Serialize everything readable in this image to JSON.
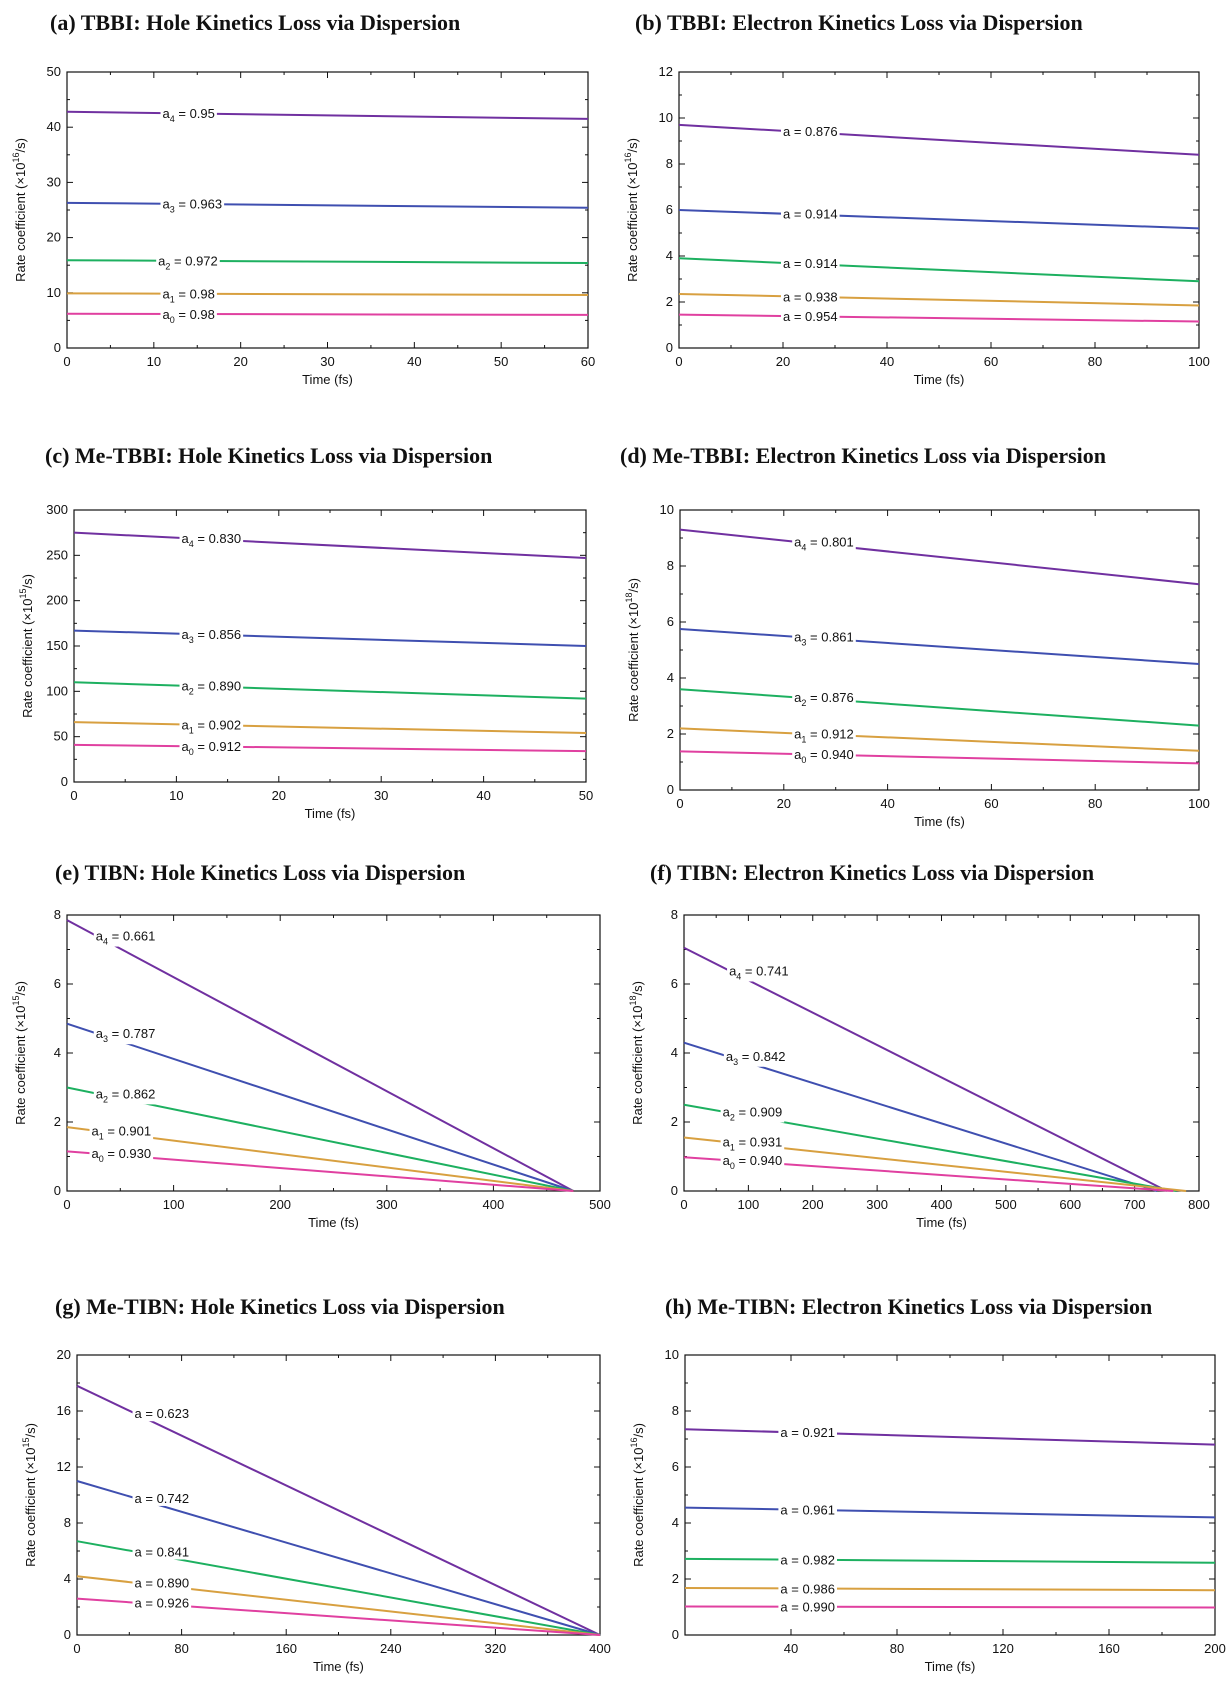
{
  "colors": {
    "purple": "#7030A0",
    "blue": "#3F4FB0",
    "green": "#1DB060",
    "orange": "#D8A040",
    "pink": "#E040A0"
  },
  "chart_data": [
    {
      "type": "line",
      "title": "(a) TBBI: Hole Kinetics Loss via Dispersion",
      "xlabel": "Time (fs)",
      "ylabel_base": "Rate coefficient (×10",
      "ylabel_exp": "16",
      "ylabel_tail": "/s)",
      "xlim": [
        0,
        60
      ],
      "ylim": [
        0,
        50
      ],
      "xticks": [
        0,
        10,
        20,
        30,
        40,
        50,
        60
      ],
      "yticks": [
        0,
        10,
        20,
        30,
        40,
        50
      ],
      "series": [
        {
          "label_base": "a",
          "label_sub": "4",
          "label_value": " = 0.95",
          "color": "#7030A0",
          "x": [
            0,
            60
          ],
          "y": [
            42.8,
            41.5
          ],
          "label_x": 11
        },
        {
          "label_base": "a",
          "label_sub": "3",
          "label_value": " = 0.963",
          "color": "#3F4FB0",
          "x": [
            0,
            60
          ],
          "y": [
            26.3,
            25.4
          ],
          "label_x": 11
        },
        {
          "label_base": "a",
          "label_sub": "2",
          "label_value": " = 0.972",
          "color": "#1DB060",
          "x": [
            0,
            60
          ],
          "y": [
            15.9,
            15.4
          ],
          "label_x": 10.5
        },
        {
          "label_base": "a",
          "label_sub": "1",
          "label_value": " = 0.98",
          "color": "#D8A040",
          "x": [
            0,
            60
          ],
          "y": [
            9.9,
            9.6
          ],
          "label_x": 11
        },
        {
          "label_base": "a",
          "label_sub": "0",
          "label_value": " = 0.98",
          "color": "#E040A0",
          "x": [
            0,
            60
          ],
          "y": [
            6.2,
            6.0
          ],
          "label_x": 11
        }
      ]
    },
    {
      "type": "line",
      "title": "(b) TBBI: Electron Kinetics Loss via Dispersion",
      "xlabel": "Time (fs)",
      "ylabel_base": "Rate coefficient (×10",
      "ylabel_exp": "16",
      "ylabel_tail": "/s)",
      "xlim": [
        0,
        100
      ],
      "ylim": [
        0,
        12
      ],
      "xticks": [
        0,
        20,
        40,
        60,
        80,
        100
      ],
      "yticks": [
        0,
        2,
        4,
        6,
        8,
        10,
        12
      ],
      "series": [
        {
          "label_base": "a",
          "label_sub": "",
          "label_value": " = 0.876",
          "color": "#7030A0",
          "x": [
            0,
            100
          ],
          "y": [
            9.7,
            8.4
          ],
          "label_x": 20
        },
        {
          "label_base": "a",
          "label_sub": "",
          "label_value": " = 0.914",
          "color": "#3F4FB0",
          "x": [
            0,
            100
          ],
          "y": [
            6.0,
            5.2
          ],
          "label_x": 20
        },
        {
          "label_base": "a",
          "label_sub": "",
          "label_value": " = 0.914",
          "color": "#1DB060",
          "x": [
            0,
            100
          ],
          "y": [
            3.9,
            2.9
          ],
          "label_x": 20
        },
        {
          "label_base": "a",
          "label_sub": "",
          "label_value": " = 0.938",
          "color": "#D8A040",
          "x": [
            0,
            100
          ],
          "y": [
            2.35,
            1.85
          ],
          "label_x": 20
        },
        {
          "label_base": "a",
          "label_sub": "",
          "label_value": " = 0.954",
          "color": "#E040A0",
          "x": [
            0,
            100
          ],
          "y": [
            1.45,
            1.15
          ],
          "label_x": 20
        }
      ]
    },
    {
      "type": "line",
      "title": "(c) Me-TBBI: Hole Kinetics Loss via Dispersion",
      "xlabel": "Time (fs)",
      "ylabel_base": "Rate coefficient (×10",
      "ylabel_exp": "15",
      "ylabel_tail": "/s)",
      "xlim": [
        0,
        50
      ],
      "ylim": [
        0,
        300
      ],
      "xticks": [
        0,
        10,
        20,
        30,
        40,
        50
      ],
      "yticks": [
        0,
        50,
        100,
        150,
        200,
        250,
        300
      ],
      "series": [
        {
          "label_base": "a",
          "label_sub": "4",
          "label_value": " = 0.830",
          "color": "#7030A0",
          "x": [
            0,
            50
          ],
          "y": [
            275,
            247
          ],
          "label_x": 10.5
        },
        {
          "label_base": "a",
          "label_sub": "3",
          "label_value": " = 0.856",
          "color": "#3F4FB0",
          "x": [
            0,
            50
          ],
          "y": [
            167,
            150
          ],
          "label_x": 10.5
        },
        {
          "label_base": "a",
          "label_sub": "2",
          "label_value": " = 0.890",
          "color": "#1DB060",
          "x": [
            0,
            50
          ],
          "y": [
            110,
            92
          ],
          "label_x": 10.5
        },
        {
          "label_base": "a",
          "label_sub": "1",
          "label_value": " = 0.902",
          "color": "#D8A040",
          "x": [
            0,
            50
          ],
          "y": [
            66,
            54
          ],
          "label_x": 10.5
        },
        {
          "label_base": "a",
          "label_sub": "0",
          "label_value": " = 0.912",
          "color": "#E040A0",
          "x": [
            0,
            50
          ],
          "y": [
            41,
            34
          ],
          "label_x": 10.5
        }
      ]
    },
    {
      "type": "line",
      "title": "(d) Me-TBBI: Electron Kinetics Loss via Dispersion",
      "xlabel": "Time (fs)",
      "ylabel_base": "Rate coefficient (×10",
      "ylabel_exp": "18",
      "ylabel_tail": "/s)",
      "xlim": [
        0,
        100
      ],
      "ylim": [
        0,
        10
      ],
      "xticks": [
        0,
        20,
        40,
        60,
        80,
        100
      ],
      "yticks": [
        0,
        2,
        4,
        6,
        8,
        10
      ],
      "series": [
        {
          "label_base": "a",
          "label_sub": "4",
          "label_value": " = 0.801",
          "color": "#7030A0",
          "x": [
            0,
            100
          ],
          "y": [
            9.3,
            7.35
          ],
          "label_x": 22
        },
        {
          "label_base": "a",
          "label_sub": "3",
          "label_value": " = 0.861",
          "color": "#3F4FB0",
          "x": [
            0,
            100
          ],
          "y": [
            5.75,
            4.5
          ],
          "label_x": 22
        },
        {
          "label_base": "a",
          "label_sub": "2",
          "label_value": " = 0.876",
          "color": "#1DB060",
          "x": [
            0,
            100
          ],
          "y": [
            3.6,
            2.3
          ],
          "label_x": 22
        },
        {
          "label_base": "a",
          "label_sub": "1",
          "label_value": " = 0.912",
          "color": "#D8A040",
          "x": [
            0,
            100
          ],
          "y": [
            2.2,
            1.4
          ],
          "label_x": 22
        },
        {
          "label_base": "a",
          "label_sub": "0",
          "label_value": " = 0.940",
          "color": "#E040A0",
          "x": [
            0,
            100
          ],
          "y": [
            1.38,
            0.95
          ],
          "label_x": 22
        }
      ]
    },
    {
      "type": "line",
      "title": "(e) TIBN: Hole Kinetics Loss via Dispersion",
      "xlabel": "Time (fs)",
      "ylabel_base": "Rate coefficient (×10",
      "ylabel_exp": "15",
      "ylabel_tail": "/s)",
      "xlim": [
        0,
        500
      ],
      "ylim": [
        0,
        8
      ],
      "xticks": [
        0,
        100,
        200,
        300,
        400,
        500
      ],
      "yticks": [
        0,
        2,
        4,
        6,
        8
      ],
      "series": [
        {
          "label_base": "a",
          "label_sub": "4",
          "label_value": " = 0.661",
          "color": "#7030A0",
          "x": [
            0,
            475
          ],
          "y": [
            7.85,
            0
          ],
          "label_x": 27
        },
        {
          "label_base": "a",
          "label_sub": "3",
          "label_value": " = 0.787",
          "color": "#3F4FB0",
          "x": [
            0,
            475
          ],
          "y": [
            4.85,
            0
          ],
          "label_x": 27
        },
        {
          "label_base": "a",
          "label_sub": "2",
          "label_value": " = 0.862",
          "color": "#1DB060",
          "x": [
            0,
            475
          ],
          "y": [
            3.0,
            0
          ],
          "label_x": 27
        },
        {
          "label_base": "a",
          "label_sub": "1",
          "label_value": " = 0.901",
          "color": "#D8A040",
          "x": [
            0,
            475
          ],
          "y": [
            1.85,
            0
          ],
          "label_x": 23
        },
        {
          "label_base": "a",
          "label_sub": "0",
          "label_value": " = 0.930",
          "color": "#E040A0",
          "x": [
            0,
            475
          ],
          "y": [
            1.15,
            0
          ],
          "label_x": 23
        }
      ]
    },
    {
      "type": "line",
      "title": "(f) TIBN: Electron Kinetics Loss via Dispersion",
      "xlabel": "Time (fs)",
      "ylabel_base": "Rate coefficient (×10",
      "ylabel_exp": "18",
      "ylabel_tail": "/s)",
      "xlim": [
        0,
        800
      ],
      "ylim": [
        0,
        8
      ],
      "xticks": [
        0,
        100,
        200,
        300,
        400,
        500,
        600,
        700,
        800
      ],
      "yticks": [
        0,
        2,
        4,
        6,
        8
      ],
      "series": [
        {
          "label_base": "a",
          "label_sub": "4",
          "label_value": " = 0.741",
          "color": "#7030A0",
          "x": [
            0,
            750
          ],
          "y": [
            7.05,
            0
          ],
          "label_x": 70
        },
        {
          "label_base": "a",
          "label_sub": "3",
          "label_value": " = 0.842",
          "color": "#3F4FB0",
          "x": [
            0,
            735
          ],
          "y": [
            4.3,
            0
          ],
          "label_x": 65
        },
        {
          "label_base": "a",
          "label_sub": "2",
          "label_value": " = 0.909",
          "color": "#1DB060",
          "x": [
            0,
            765
          ],
          "y": [
            2.5,
            0
          ],
          "label_x": 60
        },
        {
          "label_base": "a",
          "label_sub": "1",
          "label_value": " = 0.931",
          "color": "#D8A040",
          "x": [
            0,
            780
          ],
          "y": [
            1.55,
            0
          ],
          "label_x": 60
        },
        {
          "label_base": "a",
          "label_sub": "0",
          "label_value": " = 0.940",
          "color": "#E040A0",
          "x": [
            0,
            760
          ],
          "y": [
            0.98,
            0
          ],
          "label_x": 60
        }
      ]
    },
    {
      "type": "line",
      "title": "(g) Me-TIBN: Hole Kinetics Loss via Dispersion",
      "xlabel": "Time (fs)",
      "ylabel_base": "Rate coefficient (×10",
      "ylabel_exp": "15",
      "ylabel_tail": "/s)",
      "xlim": [
        0,
        400
      ],
      "ylim": [
        0,
        20
      ],
      "xticks": [
        0,
        80,
        160,
        240,
        320,
        400
      ],
      "yticks": [
        0,
        4,
        8,
        12,
        16,
        20
      ],
      "series": [
        {
          "label_base": "a",
          "label_sub": "",
          "label_value": " = 0.623",
          "color": "#7030A0",
          "x": [
            0,
            400
          ],
          "y": [
            17.8,
            0
          ],
          "label_x": 44
        },
        {
          "label_base": "a",
          "label_sub": "",
          "label_value": " = 0.742",
          "color": "#3F4FB0",
          "x": [
            0,
            400
          ],
          "y": [
            11.0,
            0
          ],
          "label_x": 44
        },
        {
          "label_base": "a",
          "label_sub": "",
          "label_value": " = 0.841",
          "color": "#1DB060",
          "x": [
            0,
            400
          ],
          "y": [
            6.7,
            0
          ],
          "label_x": 44
        },
        {
          "label_base": "a",
          "label_sub": "",
          "label_value": " = 0.890",
          "color": "#D8A040",
          "x": [
            0,
            400
          ],
          "y": [
            4.2,
            0
          ],
          "label_x": 44
        },
        {
          "label_base": "a",
          "label_sub": "",
          "label_value": " = 0.926",
          "color": "#E040A0",
          "x": [
            0,
            400
          ],
          "y": [
            2.6,
            0
          ],
          "label_x": 44
        }
      ]
    },
    {
      "type": "line",
      "title": "(h) Me-TIBN: Electron Kinetics Loss via Dispersion",
      "xlabel": "Time (fs)",
      "ylabel_base": "Rate coefficient (×10",
      "ylabel_exp": "16",
      "ylabel_tail": "/s)",
      "xlim": [
        0,
        200
      ],
      "ylim": [
        0,
        10
      ],
      "xticks": [
        40,
        80,
        120,
        160,
        200
      ],
      "yticks": [
        0,
        2,
        4,
        6,
        8,
        10
      ],
      "series": [
        {
          "label_base": "a",
          "label_sub": "",
          "label_value": " = 0.921",
          "color": "#7030A0",
          "x": [
            0,
            200
          ],
          "y": [
            7.35,
            6.8
          ],
          "label_x": 36
        },
        {
          "label_base": "a",
          "label_sub": "",
          "label_value": " = 0.961",
          "color": "#3F4FB0",
          "x": [
            0,
            200
          ],
          "y": [
            4.55,
            4.2
          ],
          "label_x": 36
        },
        {
          "label_base": "a",
          "label_sub": "",
          "label_value": " = 0.982",
          "color": "#1DB060",
          "x": [
            0,
            200
          ],
          "y": [
            2.72,
            2.58
          ],
          "label_x": 36
        },
        {
          "label_base": "a",
          "label_sub": "",
          "label_value": " = 0.986",
          "color": "#D8A040",
          "x": [
            0,
            200
          ],
          "y": [
            1.68,
            1.6
          ],
          "label_x": 36
        },
        {
          "label_base": "a",
          "label_sub": "",
          "label_value": " = 0.990",
          "color": "#E040A0",
          "x": [
            0,
            200
          ],
          "y": [
            1.02,
            0.98
          ],
          "label_x": 36
        }
      ]
    }
  ]
}
